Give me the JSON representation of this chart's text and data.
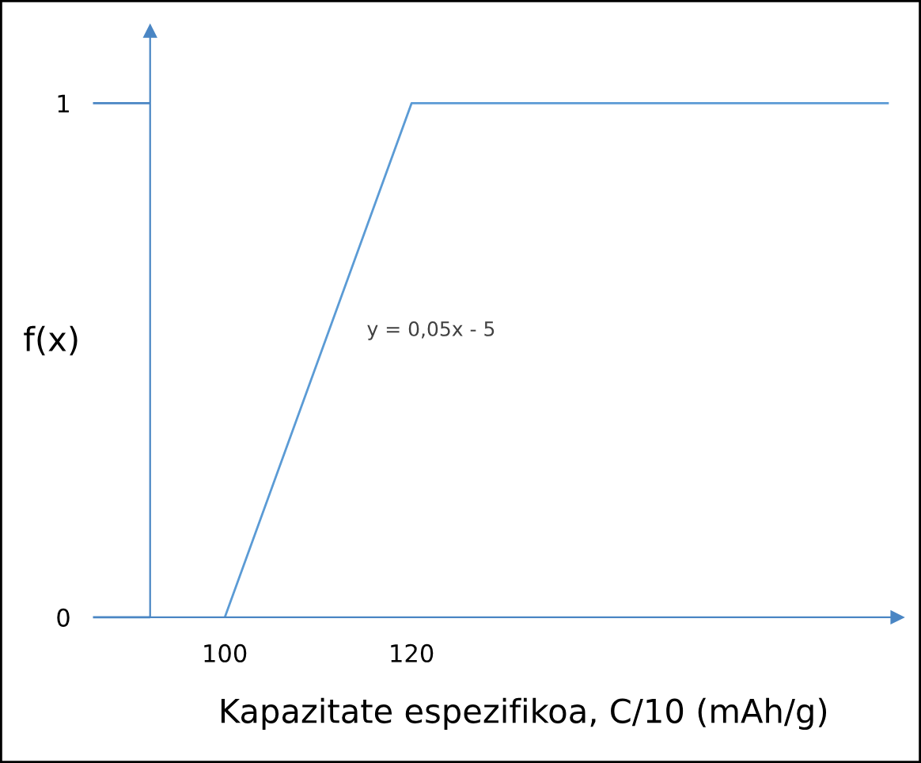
{
  "chart_data": {
    "type": "line",
    "xlabel": "Kapazitate espezifikoa, C/10 (mAh/g)",
    "ylabel": "f(x)",
    "series": [
      {
        "color": "#5b9bd5",
        "x": [
          100,
          120,
          171
        ],
        "values": [
          0,
          1,
          1
        ]
      }
    ],
    "xlim": [
      92,
      172
    ],
    "ylim": [
      0,
      1.14
    ],
    "xticks": [
      100,
      120
    ],
    "yticks": [
      0,
      1
    ],
    "grid": false,
    "marker": "none",
    "line_style": "solid",
    "annotations": [
      "y = 0,05x - 5"
    ]
  }
}
